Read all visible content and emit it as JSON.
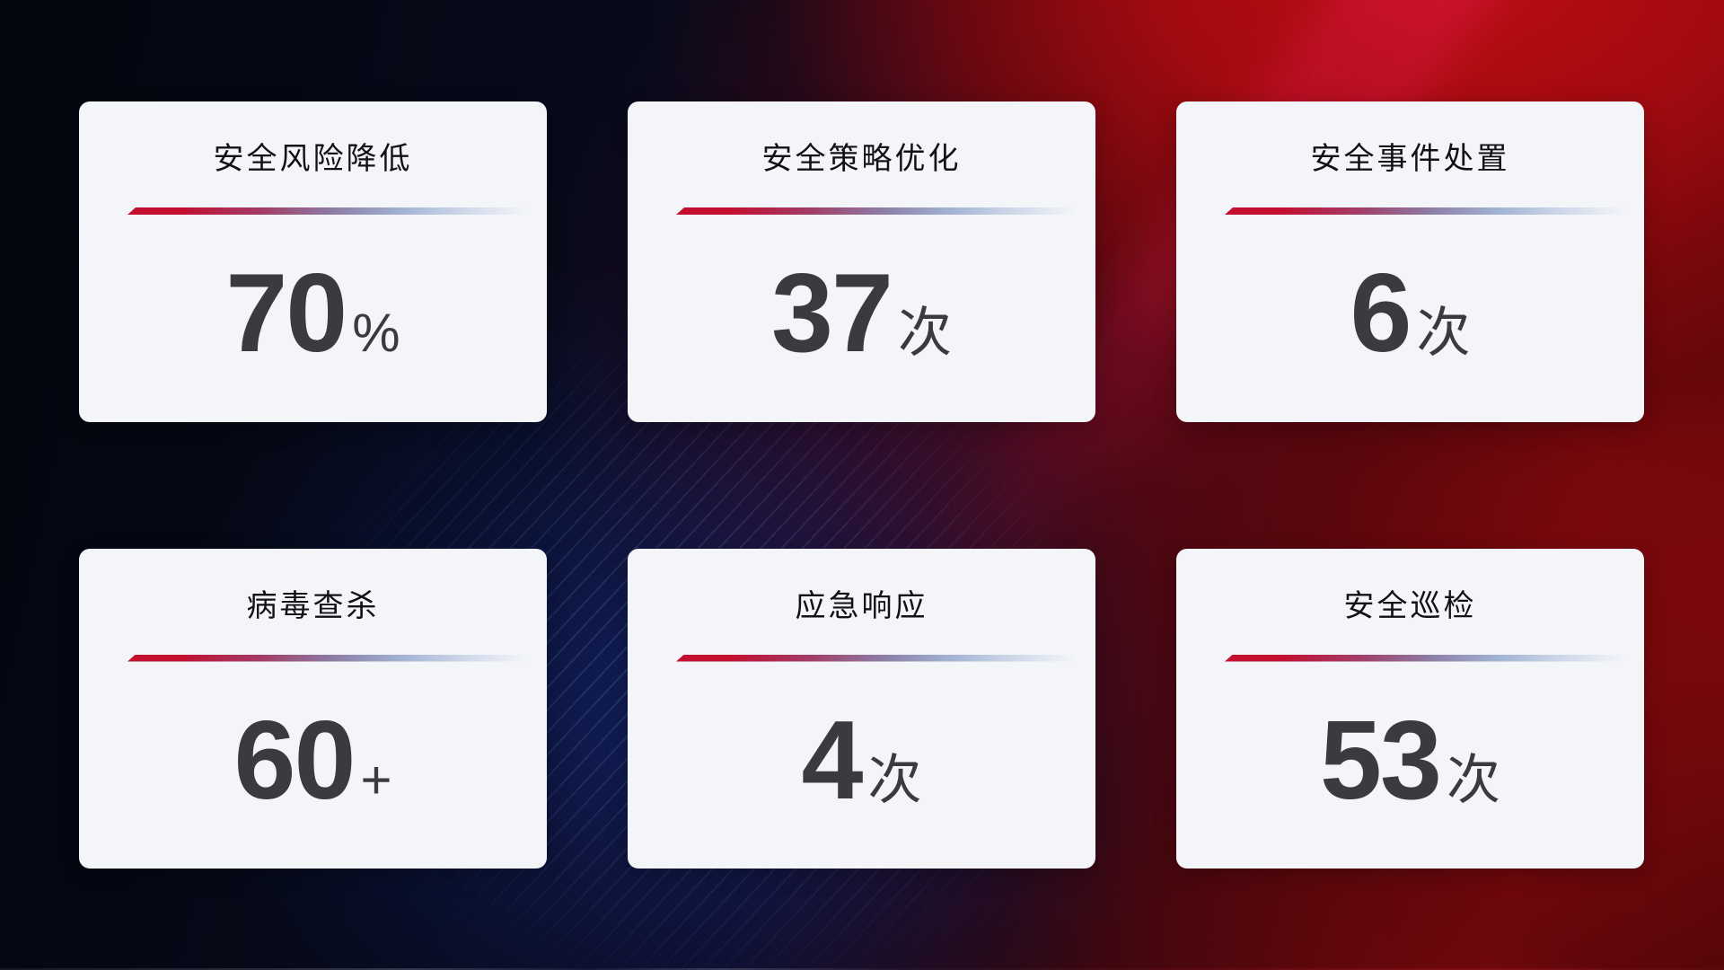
{
  "colors": {
    "accent_red": "#c30e2f",
    "divider_slate": "#8d7ba4",
    "divider_light": "#cdd7e9",
    "card_bg": "#f4f5f9",
    "title_color": "#121216",
    "number_color": "#3a3a3f",
    "bg_dark_navy": "#060a1a",
    "bg_bright_red": "#a20b10"
  },
  "cards": [
    {
      "title": "安全风险降低",
      "value": "70",
      "unit": "%"
    },
    {
      "title": "安全策略优化",
      "value": "37",
      "unit": "次"
    },
    {
      "title": "安全事件处置",
      "value": "6",
      "unit": "次"
    },
    {
      "title": "病毒查杀",
      "value": "60",
      "unit": "+"
    },
    {
      "title": "应急响应",
      "value": "4",
      "unit": "次"
    },
    {
      "title": "安全巡检",
      "value": "53",
      "unit": "次"
    }
  ]
}
